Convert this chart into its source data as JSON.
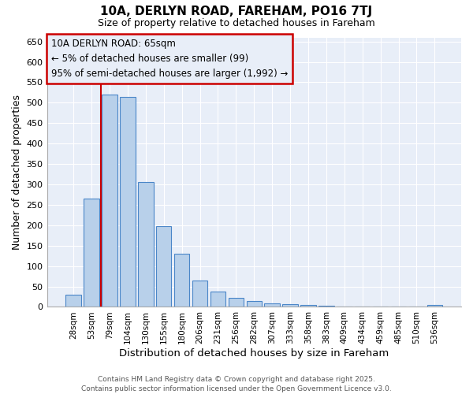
{
  "title1": "10A, DERLYN ROAD, FAREHAM, PO16 7TJ",
  "title2": "Size of property relative to detached houses in Fareham",
  "xlabel": "Distribution of detached houses by size in Fareham",
  "ylabel": "Number of detached properties",
  "categories": [
    "28sqm",
    "53sqm",
    "79sqm",
    "104sqm",
    "130sqm",
    "155sqm",
    "180sqm",
    "206sqm",
    "231sqm",
    "256sqm",
    "282sqm",
    "307sqm",
    "333sqm",
    "358sqm",
    "383sqm",
    "409sqm",
    "434sqm",
    "459sqm",
    "485sqm",
    "510sqm",
    "536sqm"
  ],
  "values": [
    30,
    265,
    520,
    515,
    305,
    197,
    130,
    65,
    38,
    22,
    15,
    8,
    6,
    4,
    2,
    1,
    1,
    0,
    1,
    0,
    5
  ],
  "bar_color": "#b8d0ea",
  "bar_edge_color": "#4a86c8",
  "redline_x": 1.5,
  "annotation_title": "10A DERLYN ROAD: 65sqm",
  "annotation_line1": "← 5% of detached houses are smaller (99)",
  "annotation_line2": "95% of semi-detached houses are larger (1,992) →",
  "redline_color": "#cc0000",
  "annotation_box_edge": "#cc0000",
  "ylim": [
    0,
    660
  ],
  "yticks": [
    0,
    50,
    100,
    150,
    200,
    250,
    300,
    350,
    400,
    450,
    500,
    550,
    600,
    650
  ],
  "background_color": "#ffffff",
  "plot_bg_color": "#e8eef8",
  "grid_color": "#ffffff",
  "footer1": "Contains HM Land Registry data © Crown copyright and database right 2025.",
  "footer2": "Contains public sector information licensed under the Open Government Licence v3.0."
}
